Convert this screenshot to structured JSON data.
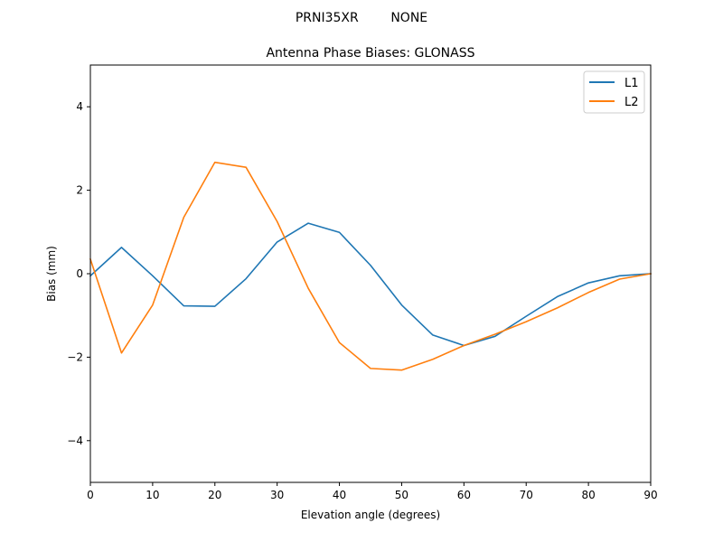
{
  "figure": {
    "suptitle": "PRNI35XR        NONE"
  },
  "chart_data": {
    "type": "line",
    "title": "Antenna Phase Biases: GLONASS",
    "xlabel": "Elevation angle (degrees)",
    "ylabel": "Bias (mm)",
    "xlim": [
      0,
      90
    ],
    "ylim": [
      -5,
      5
    ],
    "xticks": [
      0,
      10,
      20,
      30,
      40,
      50,
      60,
      70,
      80,
      90
    ],
    "yticks": [
      -4,
      -2,
      0,
      2,
      4
    ],
    "ytick_labels": [
      "−4",
      "−2",
      "0",
      "2",
      "4"
    ],
    "grid": false,
    "legend_position": "top-right",
    "x": [
      0,
      5,
      10,
      15,
      20,
      25,
      30,
      35,
      40,
      45,
      50,
      55,
      60,
      65,
      70,
      75,
      80,
      85,
      90
    ],
    "series": [
      {
        "name": "L1",
        "color": "#1f77b4",
        "values": [
          -0.05,
          0.63,
          -0.05,
          -0.77,
          -0.78,
          -0.12,
          0.76,
          1.21,
          0.99,
          0.2,
          -0.75,
          -1.47,
          -1.72,
          -1.5,
          -1.02,
          -0.55,
          -0.22,
          -0.05,
          0.0
        ]
      },
      {
        "name": "L2",
        "color": "#ff7f0e",
        "values": [
          0.35,
          -1.9,
          -0.75,
          1.35,
          2.67,
          2.55,
          1.25,
          -0.35,
          -1.65,
          -2.27,
          -2.31,
          -2.05,
          -1.72,
          -1.45,
          -1.15,
          -0.82,
          -0.45,
          -0.13,
          0.0
        ]
      }
    ]
  }
}
